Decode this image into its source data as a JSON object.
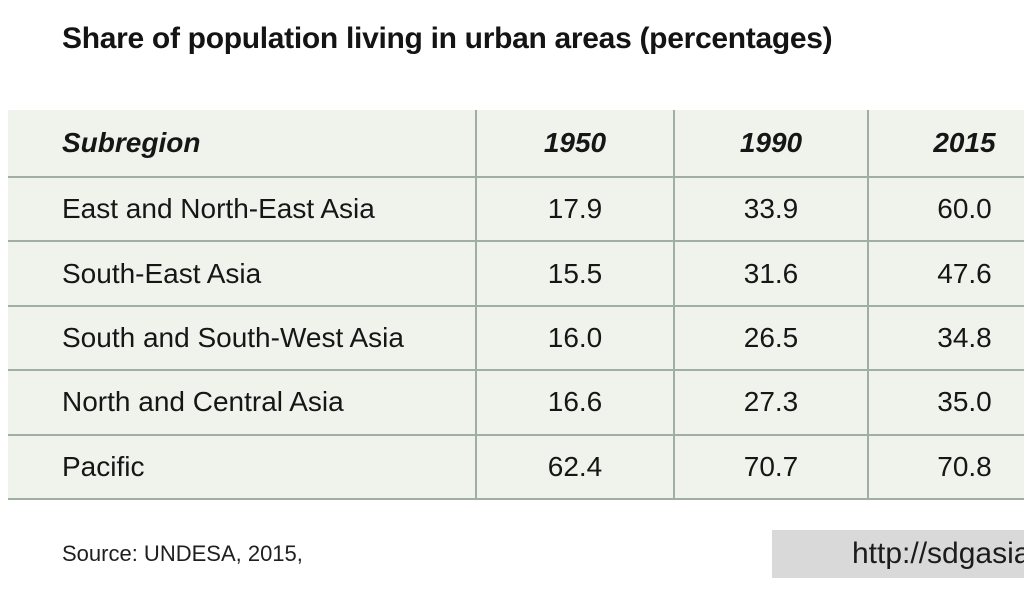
{
  "chart_data": {
    "type": "table",
    "title": "Share of population living in urban areas (percentages)",
    "columns": [
      "Subregion",
      "1950",
      "1990",
      "2015"
    ],
    "rows": [
      [
        "East and North-East Asia",
        17.9,
        33.9,
        60.0
      ],
      [
        "South-East Asia",
        15.5,
        31.6,
        47.6
      ],
      [
        "South and South-West Asia",
        16.0,
        26.5,
        34.8
      ],
      [
        "North and Central Asia",
        16.6,
        27.3,
        35.0
      ],
      [
        "Pacific",
        62.4,
        70.7,
        70.8
      ]
    ],
    "units": "percent",
    "value_format": "one_decimal",
    "source": "Source: UNDESA, 2015,"
  },
  "footer": {
    "source": "Source: UNDESA, 2015,",
    "url_fragment": "http://sdgasia"
  },
  "colors": {
    "table_background": "#eff3ec",
    "grid_line": "#a0aea3",
    "url_box_background": "#d9d9d9",
    "text_color": "#141414"
  }
}
